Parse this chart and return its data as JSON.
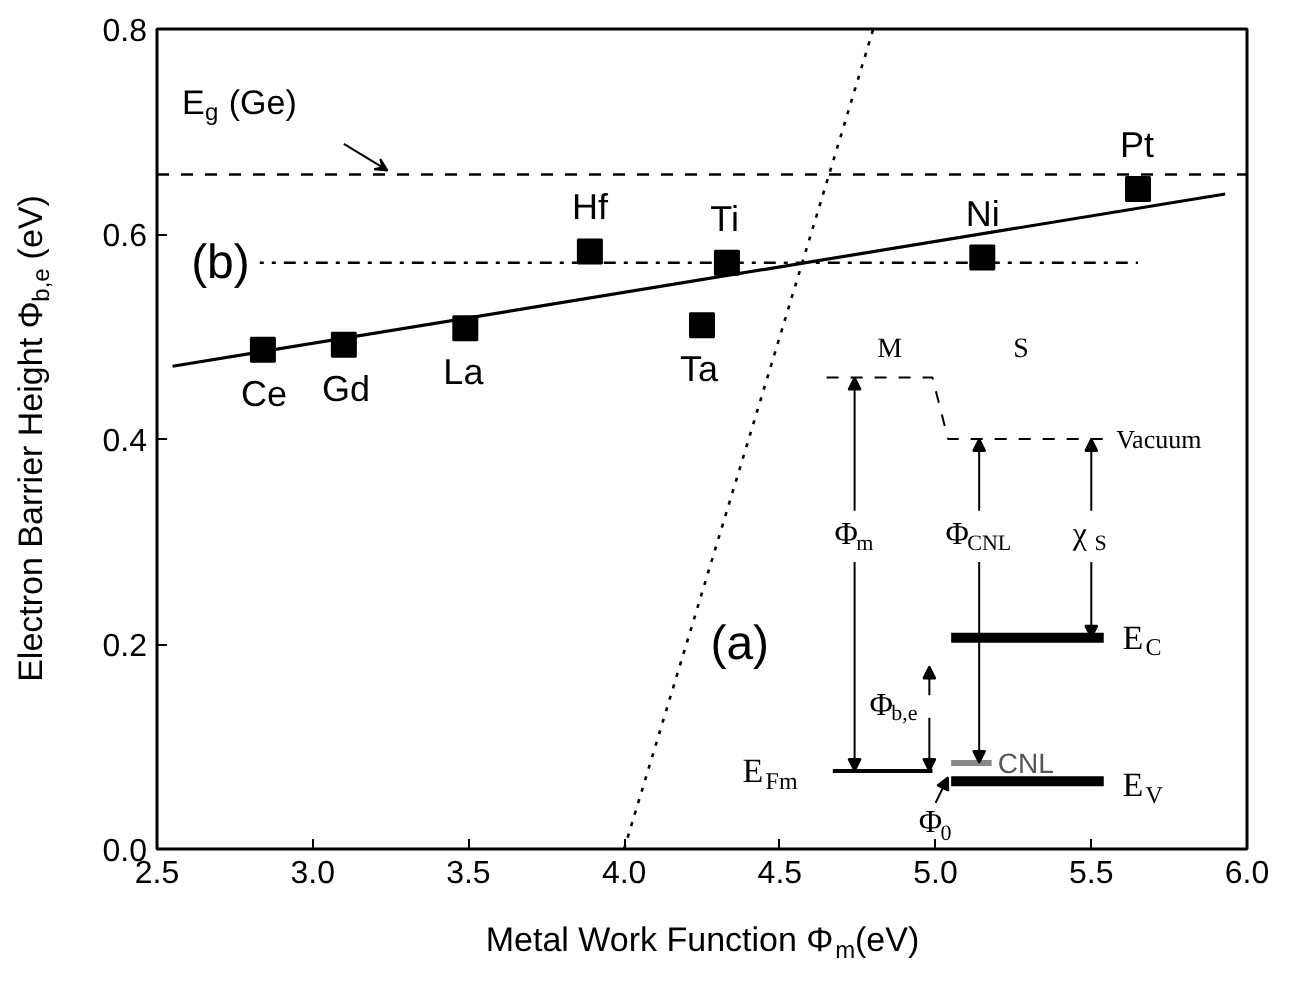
{
  "chart_data": {
    "type": "scatter",
    "xlabel": "Metal Work Function Φ$_{m}$(eV)",
    "ylabel": "Electron Barrier Height Φ$_{b,e}$ (eV)",
    "xlim": [
      2.5,
      6.0
    ],
    "xticks": [
      2.5,
      {
        "value": 3,
        "label": "3.0"
      },
      3.5,
      {
        "value": 4,
        "label": "4.0"
      },
      4.5,
      {
        "value": 5,
        "label": "5.0"
      },
      5.5,
      {
        "value": 6,
        "label": "6.0"
      }
    ],
    "ylim": [
      0.0,
      0.8
    ],
    "yticks": [
      {
        "value": 0,
        "label": "0.0"
      },
      0.2,
      0.4,
      0.6,
      0.8
    ],
    "grid": false,
    "x": [
      2.84,
      3.1,
      3.49,
      3.89,
      4.33,
      4.25,
      5.15,
      5.65
    ],
    "series": [
      {
        "marker": "square",
        "color": "#000000",
        "values": [
          0.487,
          0.492,
          0.508,
          0.583,
          0.572,
          0.511,
          0.577,
          0.644
        ]
      },
      {
        "type": "line",
        "color": "#000000",
        "line_style": "solid",
        "x": [
          2.55,
          5.93
        ],
        "values": [
          0.471,
          0.639
        ]
      },
      {
        "type": "line",
        "color": "#000000",
        "line_style": "dotted",
        "x": [
          4.0,
          4.8
        ],
        "values": [
          0.0,
          0.8
        ]
      },
      {
        "type": "line",
        "color": "#000000",
        "line_style": "dashdot",
        "x": [
          2.83,
          5.65
        ],
        "values": [
          0.572,
          0.572
        ]
      }
    ],
    "ref_lines": [
      {
        "axis": "y",
        "value": 0.658,
        "label": "E$_{g}$ (Ge)",
        "line_style": "dashed",
        "color": "#000000"
      }
    ],
    "annotations": [
      {
        "text": "Ce",
        "x": 2.84,
        "y": 0.487
      },
      {
        "text": "Gd",
        "x": 3.1,
        "y": 0.492
      },
      {
        "text": "La",
        "x": 3.49,
        "y": 0.508
      },
      {
        "text": "Hf",
        "x": 3.89,
        "y": 0.583
      },
      {
        "text": "Ti",
        "x": 4.33,
        "y": 0.572
      },
      {
        "text": "Ta",
        "x": 4.25,
        "y": 0.511
      },
      {
        "text": "Ni",
        "x": 5.15,
        "y": 0.577
      },
      {
        "text": "Pt",
        "x": 5.65,
        "y": 0.644
      },
      {
        "text": "(b)",
        "x": 2.83,
        "y": 0.572
      },
      {
        "text": "(a)",
        "x": 4.2,
        "y": 0.2
      },
      "M",
      "S",
      "Vacuum",
      "Φ$_{m}$",
      "Φ$_{CNL}$",
      "χ$_{S}$",
      "E$_{C}$",
      "Φ$_{b,e}$",
      "E$_{Fm}$",
      "CNL",
      "E$_{V}$",
      "Φ$_{0}$"
    ]
  }
}
